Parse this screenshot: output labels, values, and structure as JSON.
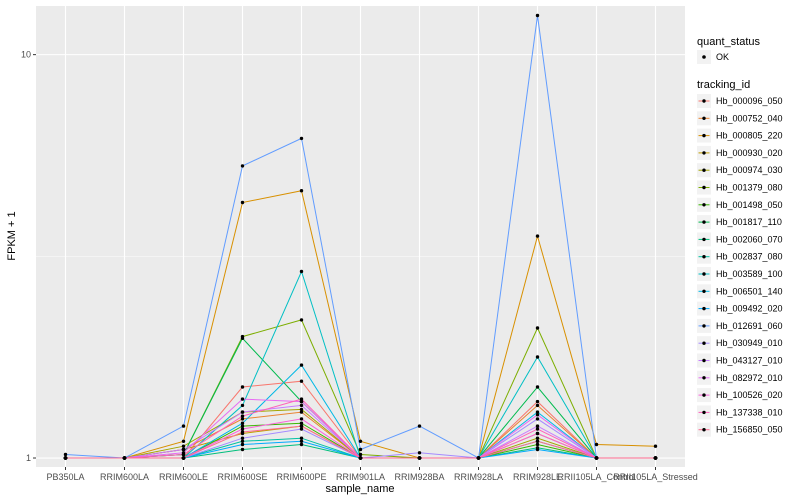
{
  "chart_data": {
    "type": "line",
    "title": "",
    "xlabel": "sample_name",
    "ylabel": "FPKM + 1",
    "y_scale": "log",
    "ylim": [
      0.95,
      13.2
    ],
    "y_ticks": [
      1,
      10
    ],
    "y_tick_labels": [
      "1",
      "10"
    ],
    "grid": true,
    "legend_position": "right",
    "categories": [
      "PB350LA",
      "RRIM600LA",
      "RRIM600LE",
      "RRIM600SE",
      "RRIM600PE",
      "RRIM901LA",
      "RRIM928BA",
      "RRIM928LA",
      "RRIM928LE",
      "RRII105LA_Control",
      "RRII105LA_Stressed"
    ],
    "point_legend": {
      "title": "quant_status",
      "entries": [
        "OK"
      ]
    },
    "series_legend_title": "tracking_id",
    "series": [
      {
        "name": "Hb_000096_050",
        "color": "#F8766D",
        "values": [
          1.0,
          1.0,
          1.0,
          1.5,
          1.55,
          1.0,
          1.0,
          1.0,
          1.38,
          1.0,
          1.0
        ]
      },
      {
        "name": "Hb_000752_040",
        "color": "#EA8331",
        "values": [
          1.0,
          1.0,
          1.05,
          1.25,
          1.3,
          1.0,
          1.0,
          1.0,
          1.35,
          1.0,
          1.0
        ]
      },
      {
        "name": "Hb_000805_220",
        "color": "#D89000",
        "values": [
          1.0,
          1.0,
          1.1,
          4.3,
          4.6,
          1.1,
          1.0,
          1.0,
          3.55,
          1.08,
          1.07
        ]
      },
      {
        "name": "Hb_000930_020",
        "color": "#C09B00",
        "values": [
          1.0,
          1.0,
          1.05,
          1.15,
          1.2,
          1.0,
          1.0,
          1.0,
          1.15,
          1.0,
          1.0
        ]
      },
      {
        "name": "Hb_000974_030",
        "color": "#A3A500",
        "values": [
          1.0,
          1.0,
          1.07,
          1.3,
          1.32,
          1.0,
          1.0,
          1.0,
          1.12,
          1.0,
          1.0
        ]
      },
      {
        "name": "Hb_001379_080",
        "color": "#7CAE00",
        "values": [
          1.0,
          1.0,
          1.02,
          2.0,
          2.2,
          1.02,
          1.0,
          1.0,
          2.1,
          1.0,
          1.0
        ]
      },
      {
        "name": "Hb_001498_050",
        "color": "#39B600",
        "values": [
          1.0,
          1.0,
          1.0,
          1.2,
          1.22,
          1.0,
          1.0,
          1.0,
          1.08,
          1.0,
          1.0
        ]
      },
      {
        "name": "Hb_001817_110",
        "color": "#00BB4E",
        "values": [
          1.0,
          1.0,
          1.02,
          1.98,
          1.38,
          1.0,
          1.0,
          1.0,
          1.5,
          1.0,
          1.0
        ]
      },
      {
        "name": "Hb_002060_070",
        "color": "#00BF7D",
        "values": [
          1.0,
          1.0,
          1.0,
          1.05,
          1.08,
          1.0,
          1.0,
          1.0,
          1.06,
          1.0,
          1.0
        ]
      },
      {
        "name": "Hb_002837_080",
        "color": "#00C1A3",
        "values": [
          1.0,
          1.0,
          1.0,
          1.1,
          1.12,
          1.0,
          1.0,
          1.0,
          1.1,
          1.0,
          1.0
        ]
      },
      {
        "name": "Hb_003589_100",
        "color": "#00BFC4",
        "values": [
          1.0,
          1.0,
          1.0,
          1.35,
          2.9,
          1.0,
          1.0,
          1.0,
          1.78,
          1.0,
          1.0
        ]
      },
      {
        "name": "Hb_006501_140",
        "color": "#00B8E5",
        "values": [
          1.0,
          1.0,
          1.0,
          1.22,
          1.7,
          1.0,
          1.0,
          1.0,
          1.3,
          1.0,
          1.0
        ]
      },
      {
        "name": "Hb_009492_020",
        "color": "#00ABFD",
        "values": [
          1.0,
          1.0,
          1.0,
          1.08,
          1.1,
          1.0,
          1.0,
          1.0,
          1.05,
          1.0,
          1.0
        ]
      },
      {
        "name": "Hb_012691_060",
        "color": "#619CFF",
        "values": [
          1.02,
          1.0,
          1.2,
          5.3,
          6.2,
          1.05,
          1.2,
          1.0,
          12.5,
          1.0,
          1.0
        ]
      },
      {
        "name": "Hb_030949_010",
        "color": "#A58AFF",
        "values": [
          1.0,
          1.0,
          1.0,
          1.12,
          1.18,
          1.0,
          1.03,
          1.0,
          1.25,
          1.0,
          1.0
        ]
      },
      {
        "name": "Hb_043127_010",
        "color": "#C77CFF",
        "values": [
          1.0,
          1.0,
          1.05,
          1.3,
          1.35,
          1.0,
          1.0,
          1.0,
          1.2,
          1.0,
          1.0
        ]
      },
      {
        "name": "Hb_082972_010",
        "color": "#E76BF3",
        "values": [
          1.0,
          1.0,
          1.03,
          1.4,
          1.38,
          1.0,
          1.0,
          1.0,
          1.28,
          1.0,
          1.0
        ]
      },
      {
        "name": "Hb_100526_020",
        "color": "#FA62DB",
        "values": [
          1.0,
          1.0,
          1.0,
          1.18,
          1.25,
          1.0,
          1.0,
          1.0,
          1.15,
          1.0,
          1.0
        ]
      },
      {
        "name": "Hb_137338_010",
        "color": "#FF62BC",
        "values": [
          1.0,
          1.0,
          1.02,
          1.27,
          1.4,
          1.0,
          1.0,
          1.0,
          1.18,
          1.0,
          1.0
        ]
      },
      {
        "name": "Hb_156850_050",
        "color": "#FF6C91",
        "values": [
          1.0,
          1.0,
          1.0,
          1.16,
          1.2,
          1.0,
          1.0,
          1.0,
          1.1,
          1.0,
          1.0
        ]
      }
    ]
  }
}
